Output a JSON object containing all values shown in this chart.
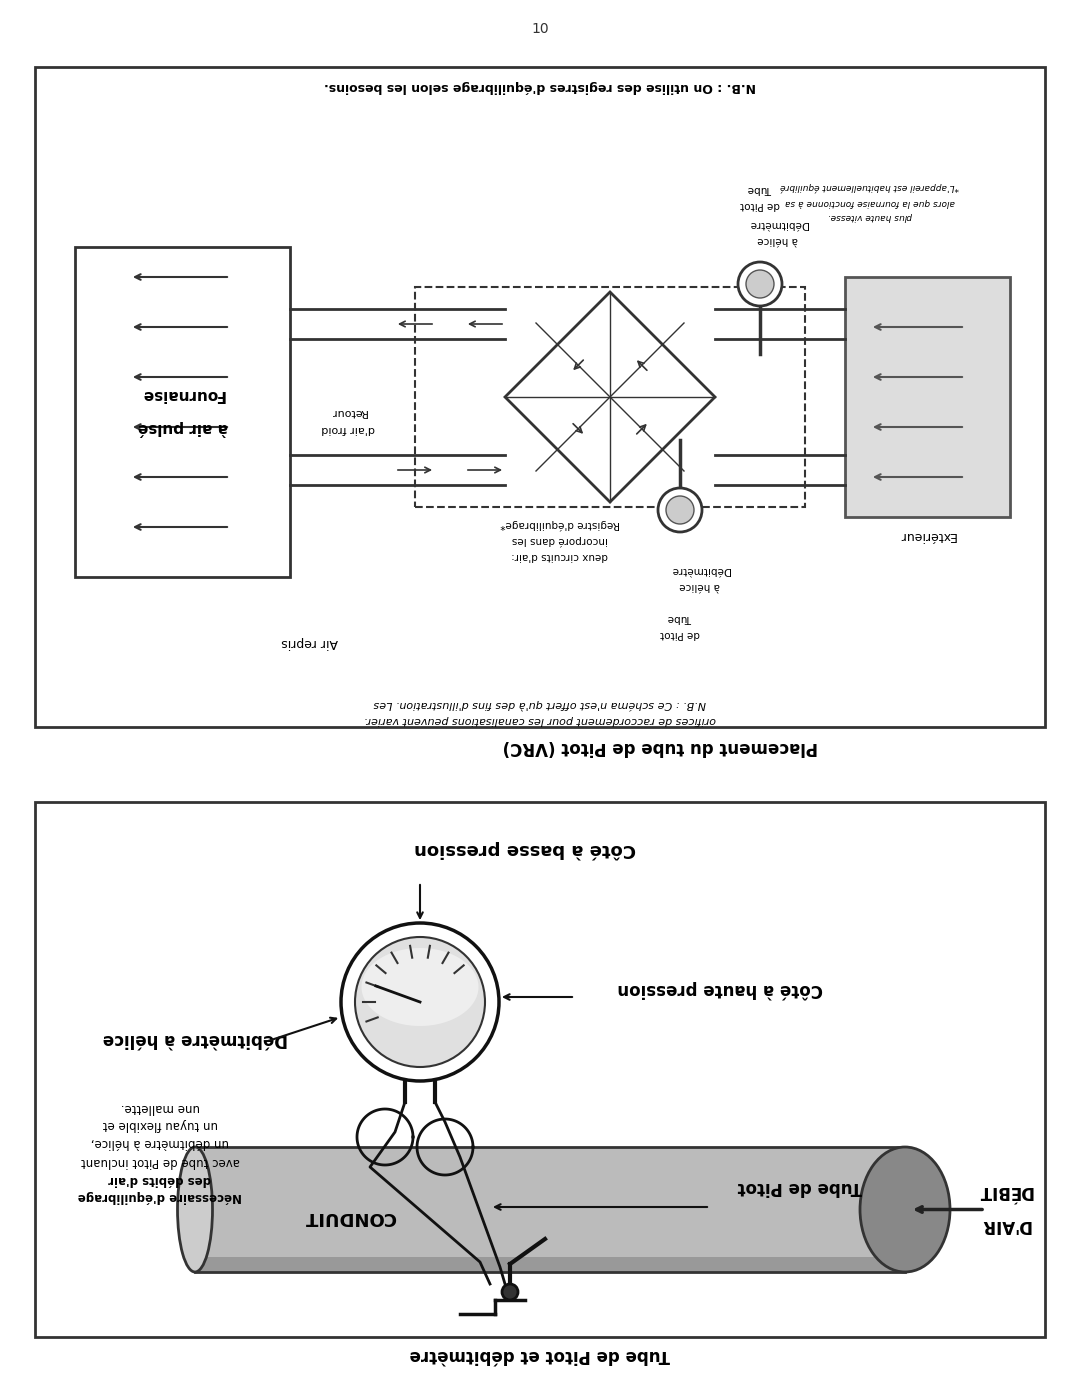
{
  "page_number": "10",
  "background_color": "#ffffff",
  "border_color": "#000000",
  "text_color": "#000000",
  "gray_color": "#888888",
  "light_gray": "#cccccc",
  "dark_gray": "#444444",
  "section1_title": "Tube de Pitot et débitmètre",
  "section1_box_label_low_pressure": "Côté à basse pression",
  "section1_box_label_high_pressure": "Côté à haute pression",
  "section1_label_debitmetre": "Débitmètre à hélice",
  "section1_label_tube_pitot": "Tube de Pitot",
  "section1_label_conduit": "CONDUIT",
  "section1_label_debit_line1": "DÉBIT",
  "section1_label_debit_line2": "D'AIR",
  "section1_note_line1": "Nécessaire d'équilibrage",
  "section1_note_line2": "des débits d'air",
  "section1_note_line3": "avec tube de Pitot incluant",
  "section1_note_line4": "un débitmètre à hélice,",
  "section1_note_line5": "un tuyau flexible et",
  "section1_note_line6": "une mallette.",
  "section2_title": "Placement du tube de Pitot (VRC)",
  "section2_box_title": "N.B. : On utilise des registres d'équilibrage selon les besoins.",
  "section2_note1_line1": "N.B. : Ce schéma n'est offert qu'à des fins d'illustration. Les",
  "section2_note1_line2": "orifices de raccordement pour les canalisations peuvent varier.",
  "section2_label_fournaise_line1": "Fournaise",
  "section2_label_fournaise_line2": "à air pulsé",
  "section2_label_retour_line1": "Retour",
  "section2_label_retour_line2": "d'air froid",
  "section2_label_air_repris": "Air repris",
  "section2_label_exterieur": "Extérieur",
  "section2_label_registre_line1": "Registre d'équilibrage*",
  "section2_label_registre_line2": "incorporé dans les",
  "section2_label_registre_line3": "deux circuits d'air:",
  "section2_label_debitmetre_helice1_line1": "Débitmètre",
  "section2_label_debitmetre_helice1_line2": "à hélice",
  "section2_label_tube_pitot1_line1": "Tube",
  "section2_label_tube_pitot1_line2": "de Pitot",
  "section2_label_debitmetre_helice2_line1": "Débitmètre",
  "section2_label_debitmetre_helice2_line2": "à hélice",
  "section2_label_tube_pitot2_line1": "Tube",
  "section2_label_tube_pitot2_line2": "de Pitot",
  "section2_footnote_line1": "*L'appareil est habituellement équilibré",
  "section2_footnote_line2": "alors que la fournaise fonctionne à sa",
  "section2_footnote_line3": "plus haute vitesse."
}
